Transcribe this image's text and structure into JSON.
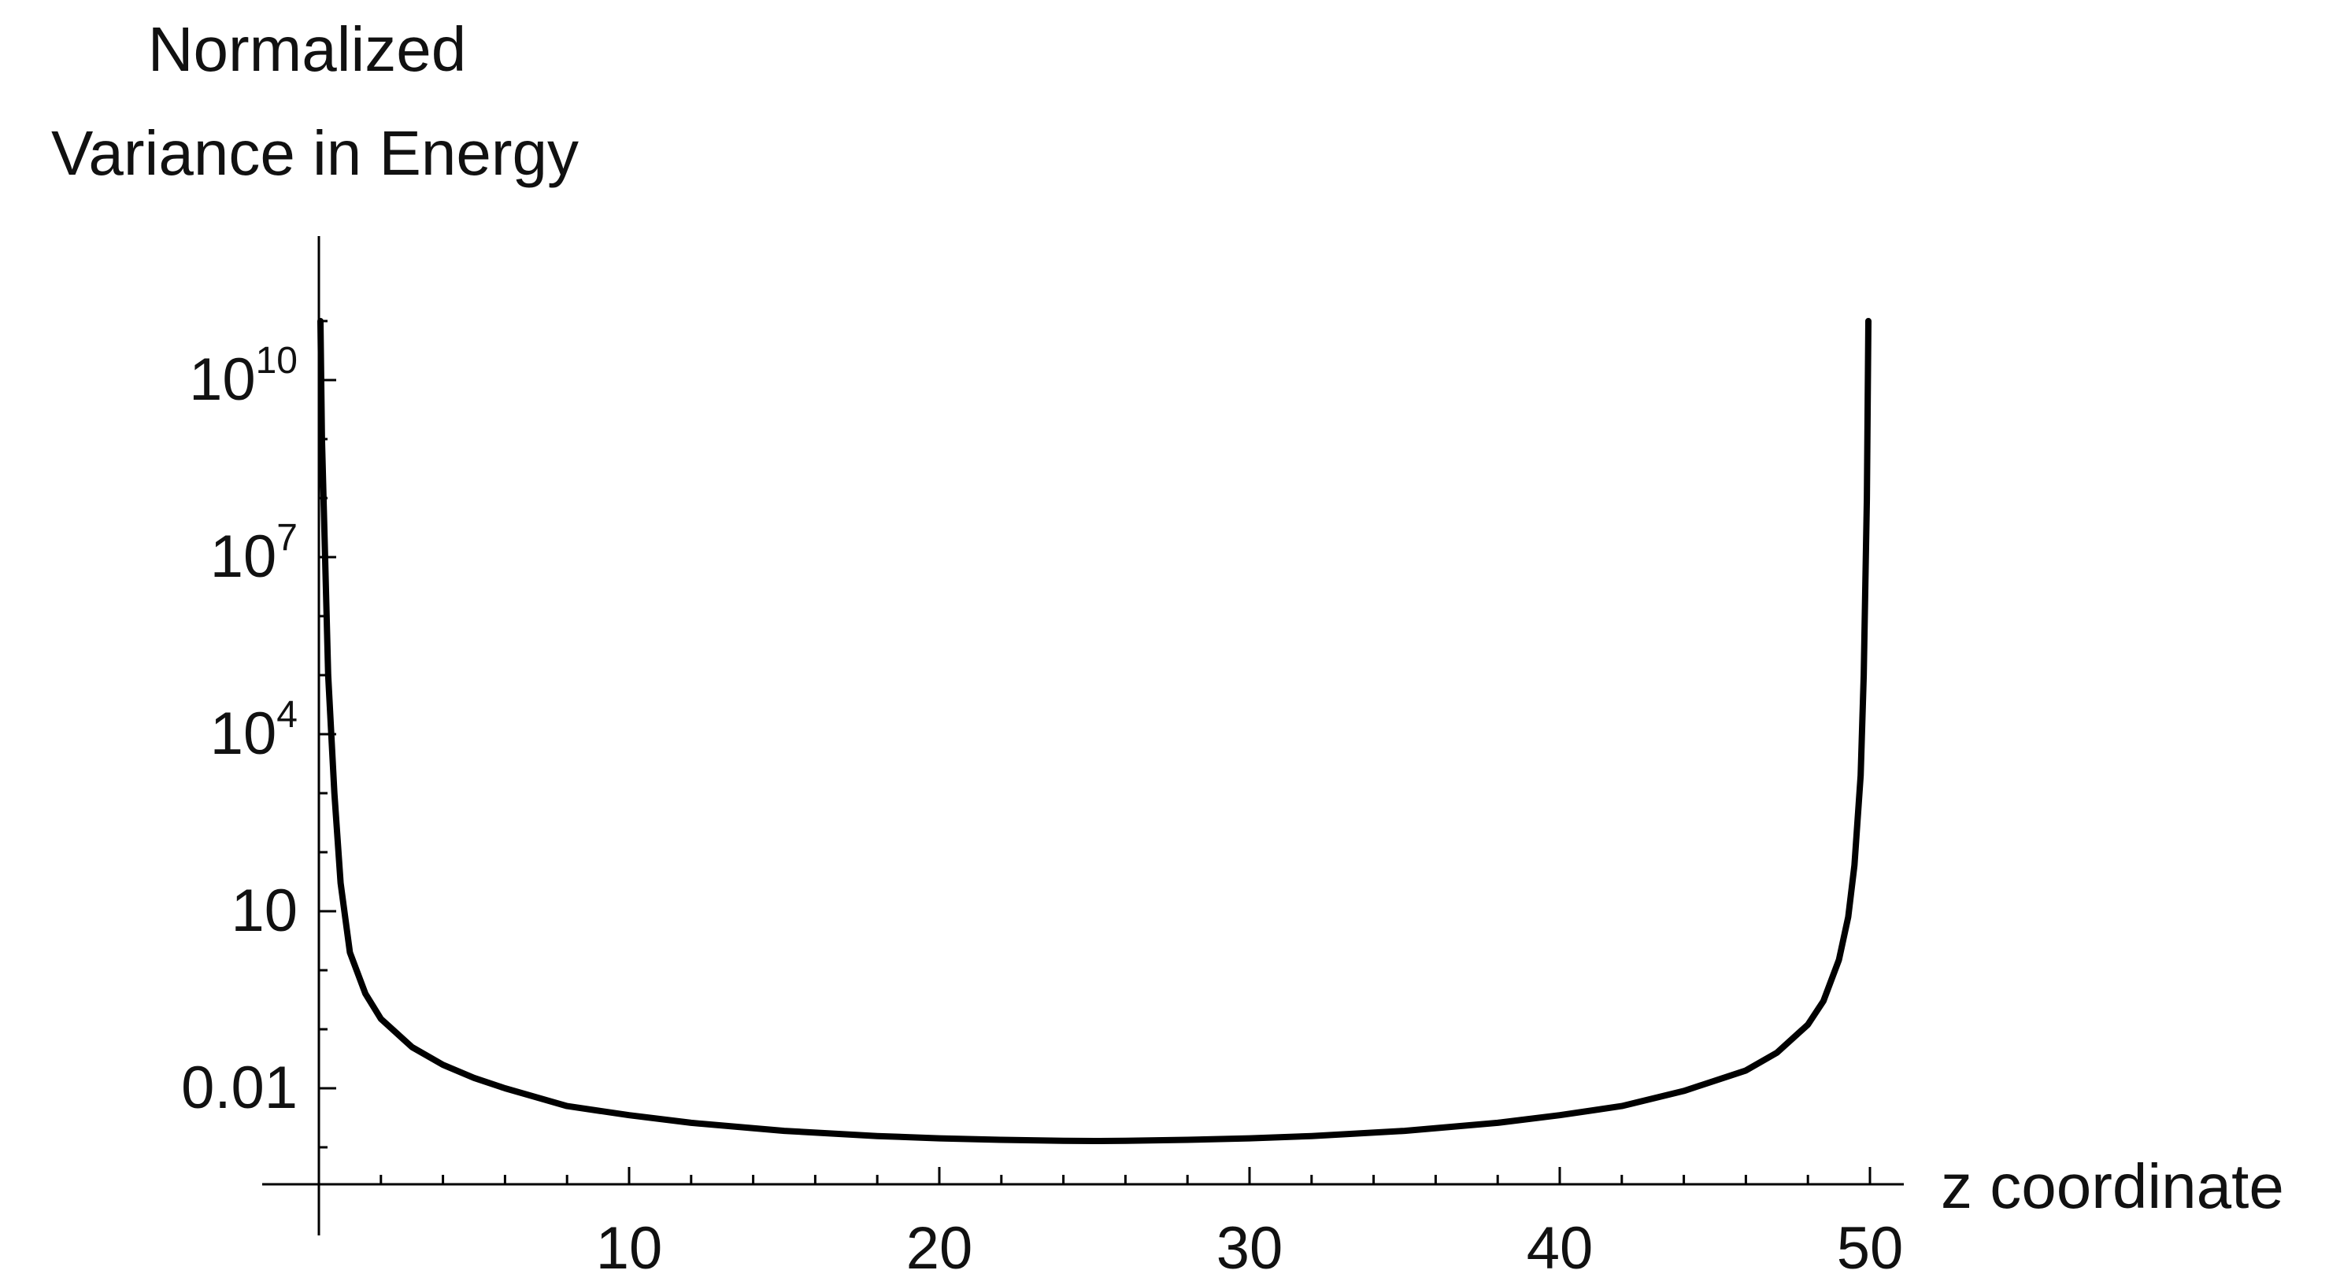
{
  "chart_data": {
    "type": "line",
    "ylabel_lines": [
      "Normalized",
      "Variance in Energy"
    ],
    "xlabel": "z coordinate",
    "x_ticks": [
      {
        "value": 10,
        "label": "10"
      },
      {
        "value": 20,
        "label": "20"
      },
      {
        "value": 30,
        "label": "30"
      },
      {
        "value": 40,
        "label": "40"
      },
      {
        "value": 50,
        "label": "50"
      }
    ],
    "y_ticks": [
      {
        "value": 0.01,
        "base": "0.01",
        "exp": ""
      },
      {
        "value": 10,
        "base": "10",
        "exp": ""
      },
      {
        "value": 10000,
        "base": "10",
        "exp": "4"
      },
      {
        "value": 10000000,
        "base": "10",
        "exp": "7"
      },
      {
        "value": 10000000000,
        "base": "10",
        "exp": "10"
      }
    ],
    "xlim": [
      0,
      51
    ],
    "ylim": [
      0.0001,
      100000000000
    ],
    "yscale": "log",
    "grid": false,
    "series": [
      {
        "color": "#000000",
        "x": [
          0.05,
          0.1,
          0.2,
          0.3,
          0.5,
          0.7,
          1,
          1.5,
          2,
          3,
          4,
          5,
          6,
          8,
          10,
          12,
          15,
          18,
          20,
          22,
          24,
          25,
          26,
          28,
          30,
          32,
          35,
          38,
          40,
          42,
          44,
          46,
          47,
          48,
          48.5,
          49,
          49.3,
          49.5,
          49.7,
          49.8,
          49.9,
          49.95
        ],
        "y": [
          100000000000,
          1000000000,
          10000000,
          100000,
          1000,
          30,
          2,
          0.4,
          0.15,
          0.05,
          0.025,
          0.015,
          0.01,
          0.005,
          0.0035,
          0.0026,
          0.0019,
          0.00155,
          0.00142,
          0.00134,
          0.00129,
          0.00128,
          0.00129,
          0.00134,
          0.00142,
          0.00155,
          0.0019,
          0.0026,
          0.0035,
          0.005,
          0.009,
          0.02,
          0.04,
          0.12,
          0.3,
          1.5,
          8,
          60,
          2000,
          100000,
          100000000,
          100000000000
        ]
      }
    ]
  }
}
